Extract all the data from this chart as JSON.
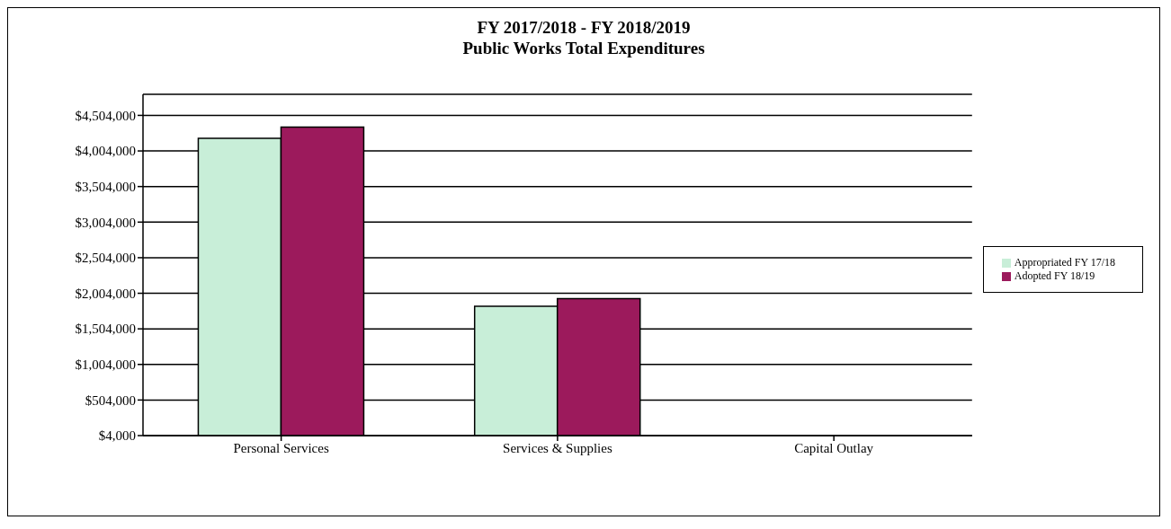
{
  "chart_data": {
    "type": "bar",
    "title": "FY 2017/2018 - FY 2018/2019\nPublic Works Total Expenditures",
    "categories": [
      "Personal Services",
      "Services & Supplies",
      "Capital Outlay"
    ],
    "series": [
      {
        "name": "Appropriated FY 17/18",
        "color": "#c8eed8",
        "values": [
          4180000,
          1820000,
          null
        ]
      },
      {
        "name": "Adopted FY 18/19",
        "color": "#9c1a5c",
        "values": [
          4340000,
          1930000,
          null
        ]
      }
    ],
    "ylim": [
      4000,
      4800000
    ],
    "yticks": [
      {
        "value": 4000,
        "label": "$4,000"
      },
      {
        "value": 504000,
        "label": "$504,000"
      },
      {
        "value": 1004000,
        "label": "$1,004,000"
      },
      {
        "value": 1504000,
        "label": "$1,504,000"
      },
      {
        "value": 2004000,
        "label": "$2,004,000"
      },
      {
        "value": 2504000,
        "label": "$2,504,000"
      },
      {
        "value": 3004000,
        "label": "$3,004,000"
      },
      {
        "value": 3504000,
        "label": "$3,504,000"
      },
      {
        "value": 4004000,
        "label": "$4,004,000"
      },
      {
        "value": 4504000,
        "label": "$4,504,000"
      }
    ],
    "grid": "y",
    "legend": "right"
  }
}
